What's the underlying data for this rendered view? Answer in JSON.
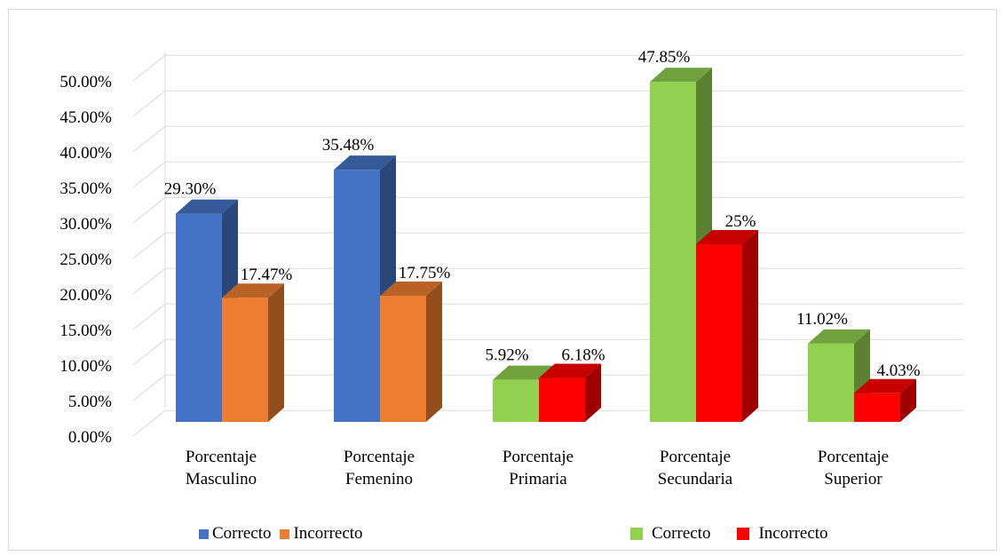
{
  "chart_data": {
    "type": "bar",
    "categories": [
      [
        "Porcentaje",
        "Masculino"
      ],
      [
        "Porcentaje",
        "Femenino"
      ],
      [
        "Porcentaje",
        "Primaria"
      ],
      [
        "Porcentaje",
        "Secundaria"
      ],
      [
        "Porcentaje",
        "Superior"
      ]
    ],
    "series": [
      {
        "name": "Correcto",
        "values": [
          29.3,
          35.48,
          5.92,
          47.85,
          11.02
        ],
        "labels": [
          "29.30%",
          "35.48%",
          "5.92%",
          "47.85%",
          "11.02%"
        ],
        "colors": [
          "#4472C4",
          "#4472C4",
          "#92D050",
          "#92D050",
          "#92D050"
        ]
      },
      {
        "name": "Incorrecto",
        "values": [
          17.47,
          17.75,
          6.18,
          25,
          4.03
        ],
        "labels": [
          "17.47%",
          "17.75%",
          "6.18%",
          "25%",
          "4.03%"
        ],
        "colors": [
          "#ED7D31",
          "#ED7D31",
          "#FF0000",
          "#FF0000",
          "#FF0000"
        ]
      }
    ],
    "yticks": [
      "0.00%",
      "5.00%",
      "10.00%",
      "15.00%",
      "20.00%",
      "25.00%",
      "30.00%",
      "35.00%",
      "40.00%",
      "45.00%",
      "50.00%"
    ],
    "ylim": [
      0,
      50
    ],
    "grid": true,
    "style": "3d-column",
    "legends": [
      {
        "items": [
          {
            "label": "Correcto",
            "color": "#4472C4"
          },
          {
            "label": "Incorrecto",
            "color": "#ED7D31"
          }
        ]
      },
      {
        "items": [
          {
            "label": "Correcto",
            "color": "#92D050"
          },
          {
            "label": "Incorrecto",
            "color": "#FF0000"
          }
        ]
      }
    ]
  }
}
